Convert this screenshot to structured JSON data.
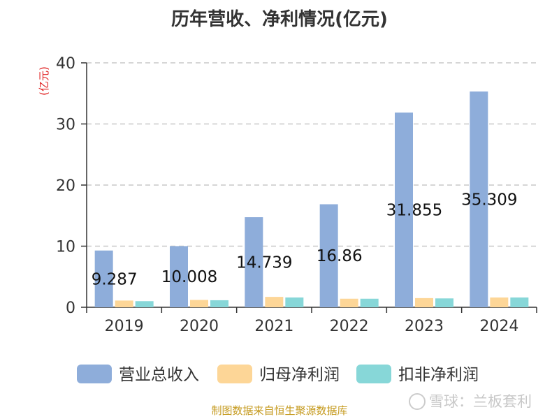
{
  "chart_data": {
    "type": "bar",
    "title": "历年营收、净利情况(亿元)",
    "ylabel": "(亿元)",
    "categories": [
      "2019",
      "2020",
      "2021",
      "2022",
      "2023",
      "2024"
    ],
    "ylim": [
      0,
      40
    ],
    "yticks": [
      "0",
      "10",
      "20",
      "30",
      "40"
    ],
    "grid": true,
    "legend_position": "bottom",
    "series": [
      {
        "name": "营业总收入",
        "color": "#8eadda",
        "values": [
          9.287,
          10.008,
          14.739,
          16.86,
          31.855,
          35.309
        ],
        "labels": [
          "9.287",
          "10.008",
          "14.739",
          "16.86",
          "31.855",
          "35.309"
        ]
      },
      {
        "name": "归母净利润",
        "color": "#fdd697",
        "values": [
          1.1,
          1.2,
          1.7,
          1.4,
          1.5,
          1.6
        ]
      },
      {
        "name": "扣非净利润",
        "color": "#87d7d8",
        "values": [
          1.0,
          1.15,
          1.6,
          1.4,
          1.45,
          1.6
        ]
      }
    ]
  },
  "footer": {
    "source": "制图数据来自恒生聚源数据库"
  },
  "watermark": {
    "text": "雪球：兰板套利"
  }
}
